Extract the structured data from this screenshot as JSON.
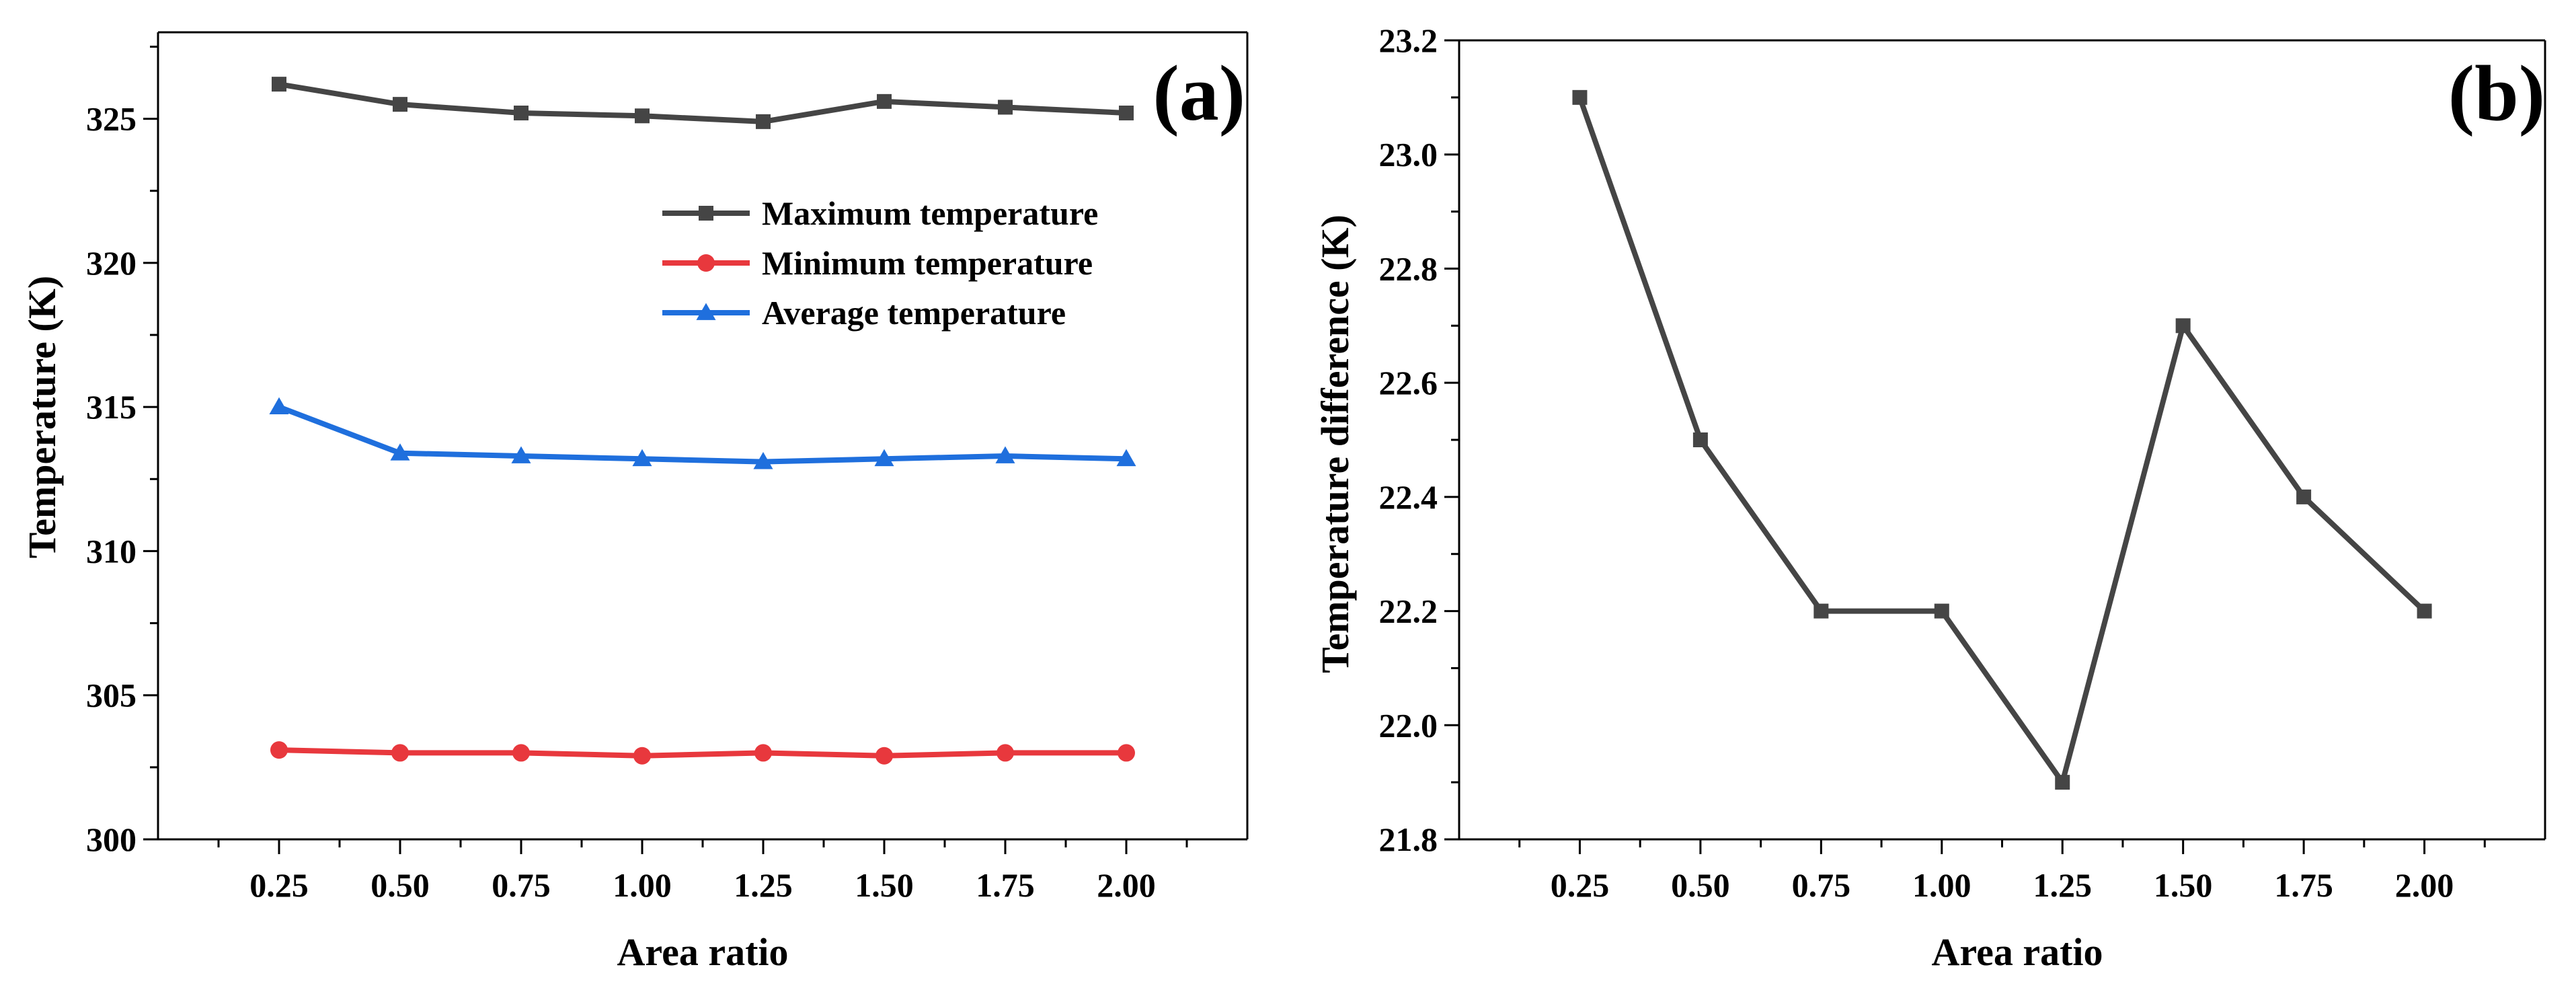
{
  "chart_data": [
    {
      "type": "line",
      "panel_label": "(a)",
      "xlabel": "Area ratio",
      "ylabel": "Temperature (K)",
      "x": [
        0.25,
        0.5,
        0.75,
        1.0,
        1.25,
        1.5,
        1.75,
        2.0
      ],
      "x_tick_labels": [
        "0.25",
        "0.50",
        "0.75",
        "1.00",
        "1.25",
        "1.50",
        "1.75",
        "2.00"
      ],
      "xlim": [
        0.0,
        2.25
      ],
      "ylim": [
        300,
        328
      ],
      "y_ticks": [
        300,
        305,
        310,
        315,
        320,
        325
      ],
      "y_tick_labels": [
        "300",
        "305",
        "310",
        "315",
        "320",
        "325"
      ],
      "grid": false,
      "legend_position": "top-right",
      "series": [
        {
          "name": "Maximum temperature",
          "marker": "square",
          "color": "#454545",
          "values": [
            326.2,
            325.5,
            325.2,
            325.1,
            324.9,
            325.6,
            325.4,
            325.2
          ]
        },
        {
          "name": "Minimum temperature",
          "marker": "circle",
          "color": "#e8383d",
          "values": [
            303.1,
            303.0,
            303.0,
            302.9,
            303.0,
            302.9,
            303.0,
            303.0
          ]
        },
        {
          "name": "Average temperature",
          "marker": "triangle",
          "color": "#1f6fdd",
          "values": [
            315.0,
            313.4,
            313.3,
            313.2,
            313.1,
            313.2,
            313.3,
            313.2
          ]
        }
      ]
    },
    {
      "type": "line",
      "panel_label": "(b)",
      "xlabel": "Area ratio",
      "ylabel": "Temperature difference (K)",
      "x": [
        0.25,
        0.5,
        0.75,
        1.0,
        1.25,
        1.5,
        1.75,
        2.0
      ],
      "x_tick_labels": [
        "0.25",
        "0.50",
        "0.75",
        "1.00",
        "1.25",
        "1.50",
        "1.75",
        "2.00"
      ],
      "xlim": [
        0.0,
        2.25
      ],
      "ylim": [
        21.8,
        23.2
      ],
      "y_ticks": [
        21.8,
        22.0,
        22.2,
        22.4,
        22.6,
        22.8,
        23.0,
        23.2
      ],
      "y_tick_labels": [
        "21.8",
        "22.0",
        "22.2",
        "22.4",
        "22.6",
        "22.8",
        "23.0",
        "23.2"
      ],
      "grid": false,
      "series": [
        {
          "marker": "square",
          "color": "#454545",
          "values": [
            23.1,
            22.5,
            22.2,
            22.2,
            21.9,
            22.7,
            22.4,
            22.2
          ]
        }
      ]
    }
  ]
}
